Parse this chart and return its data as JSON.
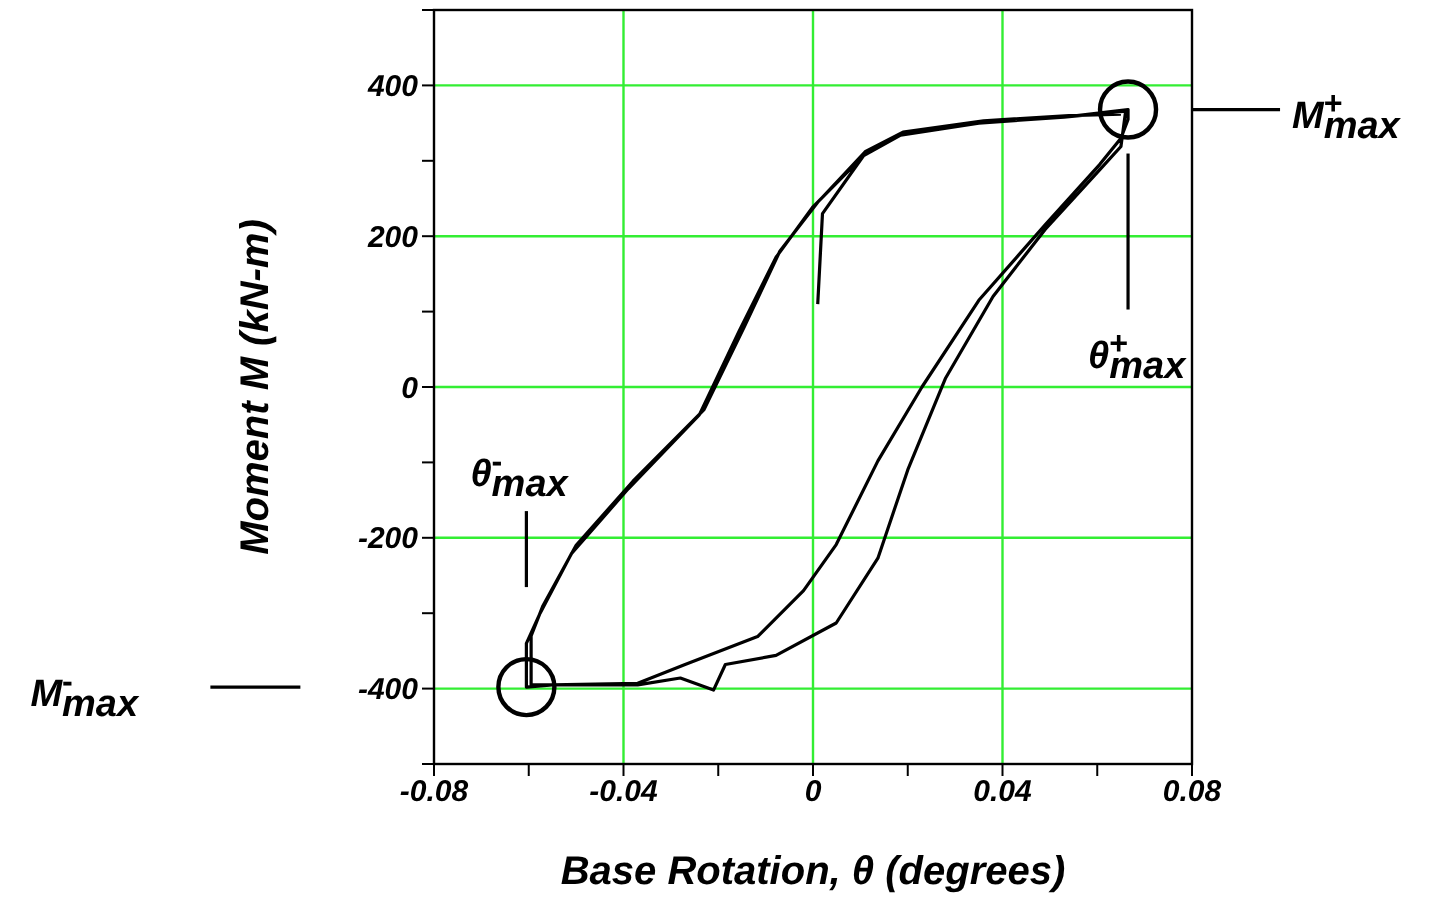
{
  "chart_data": {
    "type": "line",
    "xlabel": "Base Rotation, θ (degrees)",
    "ylabel": "Moment M (kN-m)",
    "xlim": [
      -0.08,
      0.08
    ],
    "ylim": [
      -500,
      500
    ],
    "xticks": [
      -0.08,
      {
        "value": -0.06,
        "label": null
      },
      -0.04,
      {
        "value": -0.02,
        "label": null
      },
      0,
      {
        "value": 0.02,
        "label": null
      },
      0.04,
      {
        "value": 0.06,
        "label": null
      },
      0.08
    ],
    "yticks": [
      {
        "value": -500,
        "label": null
      },
      -400,
      {
        "value": -300,
        "label": null
      },
      -200,
      {
        "value": -100,
        "label": null
      },
      0,
      {
        "value": 100,
        "label": null
      },
      200,
      {
        "value": 300,
        "label": null
      },
      400,
      {
        "value": 500,
        "label": null
      }
    ],
    "grid": true,
    "marker": "none",
    "line_style": "solid",
    "series": [
      {
        "color": "#000000",
        "x": [
          0.001,
          0.002,
          0.0107,
          0.0185,
          0.035,
          0.053,
          0.066,
          0.065,
          0.0605,
          0.049,
          0.038,
          0.028,
          0.02,
          0.0137,
          0.0049,
          -0.0078,
          -0.0185,
          -0.021,
          -0.028,
          -0.037,
          -0.055,
          -0.0605,
          -0.0605,
          -0.0576,
          -0.051,
          -0.039,
          -0.024,
          -0.0156,
          -0.0078,
          0,
          0.0107,
          0.0185,
          0.035,
          0.053,
          0.0665,
          0.0665,
          0.065,
          0.0605,
          0.049,
          0.035,
          0.023,
          0.0137,
          0.0049,
          -0.002,
          -0.0117,
          -0.027,
          -0.037,
          -0.055,
          -0.0595,
          -0.0595,
          -0.057,
          -0.05,
          -0.038,
          -0.023,
          -0.0145,
          -0.007,
          0.001,
          0.011,
          0.019,
          0.036,
          0.054,
          0.065
        ],
        "values": [
          110,
          230,
          307,
          334,
          350,
          358,
          366,
          319,
          288,
          209,
          120,
          12,
          -110,
          -227,
          -313,
          -356,
          -368,
          -402,
          -386,
          -395,
          -395,
          -398,
          -340,
          -300,
          -221,
          -135,
          -37,
          74,
          172,
          239,
          307,
          334,
          350,
          358,
          368,
          355,
          330,
          295,
          215,
          115,
          0,
          -98,
          -209,
          -270,
          -331,
          -368,
          -393,
          -395,
          -395,
          -330,
          -290,
          -210,
          -125,
          -30,
          80,
          180,
          245,
          312,
          338,
          353,
          360,
          362
        ]
      }
    ],
    "annotations": [
      "M$^{+}$$_{max}$",
      "θ$^{+}$$_{max}$",
      "M$^{-}$$_{max}$",
      "θ$^{-}$$_{max}$"
    ]
  }
}
